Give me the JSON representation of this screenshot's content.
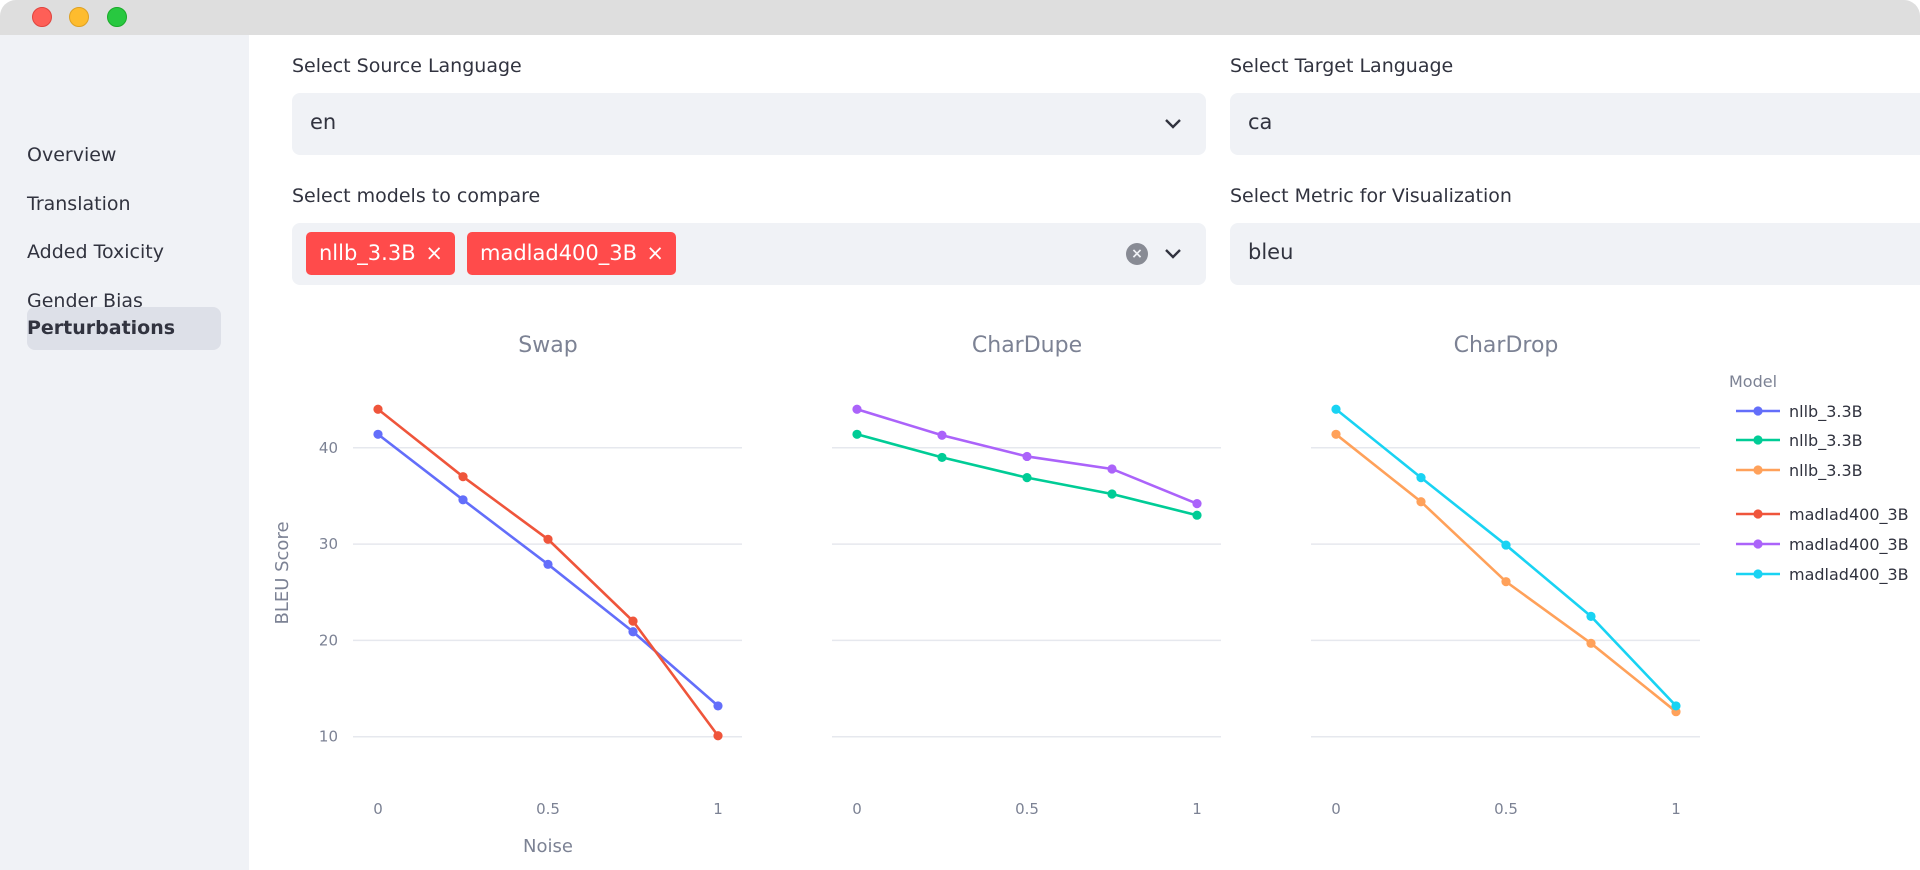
{
  "sidebar": {
    "items": [
      {
        "label": "Overview"
      },
      {
        "label": "Translation"
      },
      {
        "label": "Added Toxicity"
      },
      {
        "label": "Gender Bias"
      },
      {
        "label": "Perturbations"
      }
    ]
  },
  "controls": {
    "source_label": "Select Source Language",
    "source_value": "en",
    "target_label": "Select Target Language",
    "target_value": "ca",
    "models_label": "Select models to compare",
    "models": [
      "nllb_3.3B",
      "madlad400_3B"
    ],
    "tag_remove": "×",
    "clear": "×",
    "metric_label": "Select Metric for Visualization",
    "metric_value": "bleu"
  },
  "chart_data": {
    "type": "line",
    "ylabel": "BLEU Score",
    "xlabel": "Noise",
    "xlim": [
      0,
      1
    ],
    "ylim": [
      8,
      46
    ],
    "xticks": [
      0,
      0.5,
      1
    ],
    "xtick_labels": [
      "0",
      "0.5",
      "1"
    ],
    "yticks": [
      10,
      20,
      30,
      40
    ],
    "grid": true,
    "legend_title": "Model",
    "legend_placement": "right",
    "legend": [
      {
        "name": "nllb_3.3B",
        "color": "#636efa"
      },
      {
        "name": "nllb_3.3B",
        "color": "#00cc96"
      },
      {
        "name": "nllb_3.3B",
        "color": "#ffa15a"
      },
      {
        "name": "madlad400_3B",
        "color": "#ef553b"
      },
      {
        "name": "madlad400_3B",
        "color": "#ab63fa"
      },
      {
        "name": "madlad400_3B",
        "color": "#19d3f3"
      }
    ],
    "panels": [
      {
        "title": "Swap",
        "series": [
          {
            "name": "nllb_3.3B",
            "color": "#636efa",
            "x": [
              0,
              0.25,
              0.5,
              0.75,
              1
            ],
            "y": [
              41.4,
              34.6,
              27.9,
              20.9,
              13.2
            ]
          },
          {
            "name": "madlad400_3B",
            "color": "#ef553b",
            "x": [
              0,
              0.25,
              0.5,
              0.75,
              1
            ],
            "y": [
              44.0,
              37.0,
              30.5,
              22.0,
              10.1
            ]
          }
        ]
      },
      {
        "title": "CharDupe",
        "series": [
          {
            "name": "nllb_3.3B",
            "color": "#00cc96",
            "x": [
              0,
              0.25,
              0.5,
              0.75,
              1
            ],
            "y": [
              41.4,
              39.0,
              36.9,
              35.2,
              33.0
            ]
          },
          {
            "name": "madlad400_3B",
            "color": "#ab63fa",
            "x": [
              0,
              0.25,
              0.5,
              0.75,
              1
            ],
            "y": [
              44.0,
              41.3,
              39.1,
              37.8,
              34.2
            ]
          }
        ]
      },
      {
        "title": "CharDrop",
        "series": [
          {
            "name": "nllb_3.3B",
            "color": "#ffa15a",
            "x": [
              0,
              0.25,
              0.5,
              0.75,
              1
            ],
            "y": [
              41.4,
              34.4,
              26.1,
              19.7,
              12.6
            ]
          },
          {
            "name": "madlad400_3B",
            "color": "#19d3f3",
            "x": [
              0,
              0.25,
              0.5,
              0.75,
              1
            ],
            "y": [
              44.0,
              36.9,
              29.9,
              22.5,
              13.2
            ]
          }
        ]
      }
    ]
  }
}
